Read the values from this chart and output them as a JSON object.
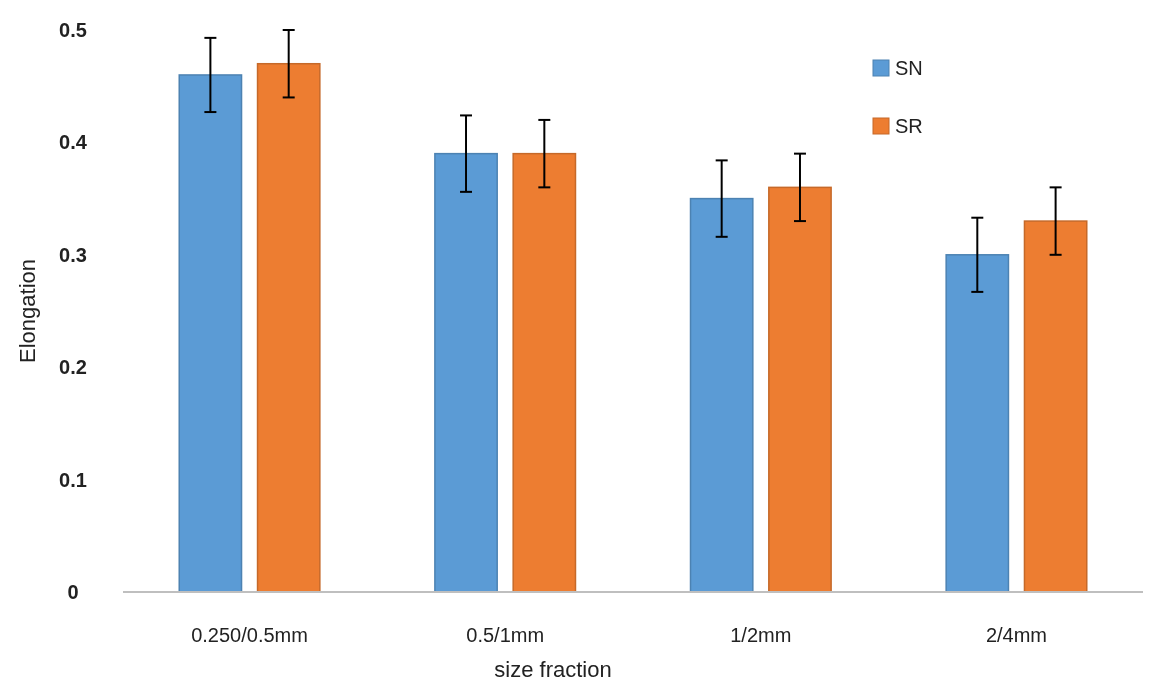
{
  "chart_data": {
    "type": "bar",
    "xlabel": "size fraction",
    "ylabel": "Elongation",
    "categories": [
      "0.250/0.5mm",
      "0.5/1mm",
      "1/2mm",
      "2/4mm"
    ],
    "series": [
      {
        "name": "SN",
        "color": "#5b9bd5",
        "values": [
          0.46,
          0.39,
          0.35,
          0.3
        ],
        "errors": [
          0.033,
          0.034,
          0.034,
          0.033
        ]
      },
      {
        "name": "SR",
        "color": "#ed7d31",
        "values": [
          0.47,
          0.39,
          0.36,
          0.33
        ],
        "errors": [
          0.03,
          0.03,
          0.03,
          0.03
        ]
      }
    ],
    "ylim": [
      0,
      0.5
    ],
    "yticks": [
      {
        "value": 0,
        "label": "0"
      },
      0.1,
      0.2,
      0.3,
      0.4,
      0.5
    ],
    "grid": false,
    "legend": "top right"
  }
}
